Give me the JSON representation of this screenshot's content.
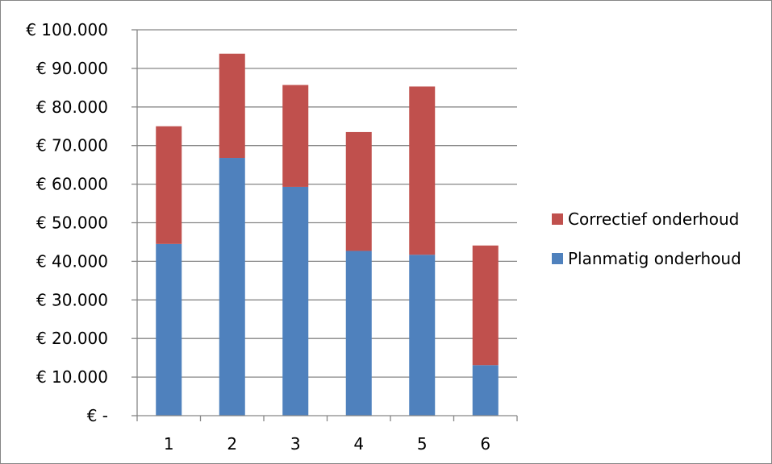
{
  "chart_data": {
    "type": "bar",
    "stacked": true,
    "title": "",
    "xlabel": "",
    "ylabel": "",
    "categories": [
      "1",
      "2",
      "3",
      "4",
      "5",
      "6"
    ],
    "series": [
      {
        "name": "Planmatig onderhoud",
        "color": "#4F81BD",
        "values": [
          44500,
          66800,
          59300,
          42700,
          41700,
          13100
        ]
      },
      {
        "name": "Correctief onderhoud",
        "color": "#C0504D",
        "values": [
          30500,
          27000,
          26400,
          30800,
          43600,
          31000
        ]
      }
    ],
    "ylim": [
      0,
      100000
    ],
    "ytick_step": 10000,
    "ytick_labels": [
      "€ -",
      "€ 10.000",
      "€ 20.000",
      "€ 30.000",
      "€ 40.000",
      "€ 50.000",
      "€ 60.000",
      "€ 70.000",
      "€ 80.000",
      "€ 90.000",
      "€ 100.000"
    ],
    "grid": true,
    "legend_position": "right",
    "legend_order": [
      "Correctief onderhoud",
      "Planmatig onderhoud"
    ]
  }
}
